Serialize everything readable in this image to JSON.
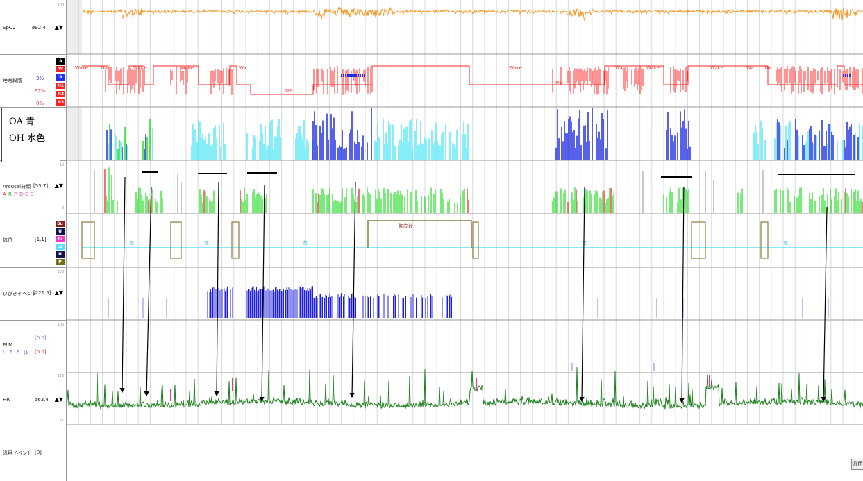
{
  "channels": {
    "spo2": {
      "label": "SpO2",
      "value": "ø92.4",
      "scale_top": "100"
    },
    "sleep_stage": {
      "label": "睡眠段階",
      "pct_r": "3%",
      "pct_n1": "97%",
      "pct_n3": "0%",
      "stages": [
        "A",
        "W",
        "R",
        "N1",
        "N2",
        "N3"
      ],
      "annotations": [
        "Wake",
        "Wa",
        "Wake",
        "Wake",
        "Wa",
        "N2",
        "Wake",
        "N1",
        "Wa",
        "Wake",
        "Wake",
        "Wa",
        "Wa"
      ]
    },
    "respiratory": {
      "legend_oa": "OA 青",
      "legend_oh": "OH 水色"
    },
    "arousal": {
      "label": "Arousal分類",
      "value": "[53.7]",
      "scale_top": "10",
      "scale_bottom": "0",
      "letters": [
        "A",
        "R",
        "P",
        "D",
        "C",
        "S"
      ]
    },
    "position": {
      "label": "体位",
      "value": "[1.1]",
      "codes": [
        "Su",
        "U",
        "Ri",
        "Le",
        "U",
        "P"
      ],
      "annotations": [
        "左",
        "左",
        "左",
        "仰向け",
        "左",
        "左"
      ]
    },
    "snore": {
      "label": "いびきイベント",
      "value": "[221.5]",
      "scale_top": "100"
    },
    "plm": {
      "label": "PLM",
      "value": "[0.0]",
      "value2": "[0.0]",
      "letters": [
        "L",
        "P",
        "R",
        "体"
      ],
      "scale_top": "106"
    },
    "hr": {
      "label": "HR",
      "value": "ø63.4",
      "scale_top": "120",
      "scale_bottom": "51"
    },
    "generic": {
      "label": "汎用イベント",
      "value": "[0]"
    }
  },
  "corner_label": "汎用",
  "colors": {
    "spo2": "#f7941d",
    "hypnogram": "#ff2a2a",
    "oa": "#1f2ee0",
    "oh": "#5ee9f5",
    "arousal_green": "#22dd22",
    "arousal_red": "#d81e1e",
    "position_line": "#5fe0ef",
    "position_box": "#8a7b3c",
    "snore": "#2020e0",
    "hr": "#1a7f1a",
    "hr_pink": "#ff2aa6"
  }
}
